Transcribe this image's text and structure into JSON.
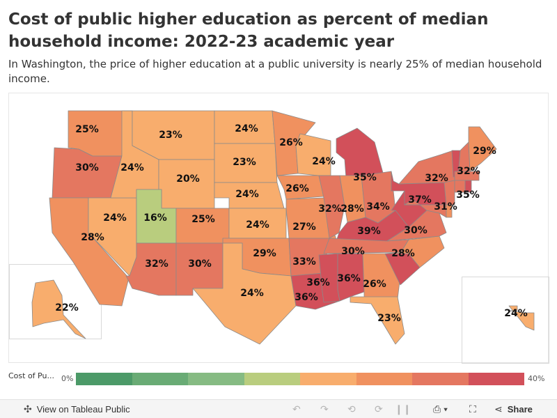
{
  "title": "Cost of public higher education as percent of median household income: 2022-23 academic year",
  "subtitle": "In Washington, the price of higher education at a public university is nearly 25% of median household income.",
  "colors": {
    "scale": [
      "#4c9a68",
      "#69ab75",
      "#86bb83",
      "#b9cd7e",
      "#f8ad6d",
      "#f0915f",
      "#e47760",
      "#d2505a"
    ],
    "border": "#8a8a8a"
  },
  "chart_data": {
    "type": "choropleth",
    "measure": "Cost of Pu...",
    "range": [
      0,
      40
    ],
    "states": [
      {
        "code": "WA",
        "value": 25,
        "label": "25%"
      },
      {
        "code": "OR",
        "value": 30,
        "label": "30%"
      },
      {
        "code": "CA",
        "value": 28,
        "label": "28%"
      },
      {
        "code": "NV",
        "value": 24,
        "label": "24%"
      },
      {
        "code": "ID",
        "value": 24,
        "label": "24%"
      },
      {
        "code": "MT",
        "value": 23,
        "label": "23%"
      },
      {
        "code": "WY",
        "value": 20,
        "label": "20%"
      },
      {
        "code": "UT",
        "value": 16,
        "label": "16%"
      },
      {
        "code": "CO",
        "value": 25,
        "label": "25%"
      },
      {
        "code": "AZ",
        "value": 32,
        "label": "32%"
      },
      {
        "code": "NM",
        "value": 30,
        "label": "30%"
      },
      {
        "code": "ND",
        "value": 24,
        "label": "24%"
      },
      {
        "code": "SD",
        "value": 23,
        "label": "23%"
      },
      {
        "code": "NE",
        "value": 24,
        "label": "24%"
      },
      {
        "code": "KS",
        "value": 24,
        "label": "24%"
      },
      {
        "code": "OK",
        "value": 29,
        "label": "29%"
      },
      {
        "code": "TX",
        "value": 24,
        "label": "24%"
      },
      {
        "code": "MN",
        "value": 26,
        "label": "26%"
      },
      {
        "code": "IA",
        "value": 26,
        "label": "26%"
      },
      {
        "code": "MO",
        "value": 27,
        "label": "27%"
      },
      {
        "code": "AR",
        "value": 33,
        "label": "33%"
      },
      {
        "code": "LA",
        "value": 36,
        "label": "36%"
      },
      {
        "code": "WI",
        "value": 24,
        "label": "24%"
      },
      {
        "code": "IL",
        "value": 32,
        "label": "32%"
      },
      {
        "code": "MI",
        "value": 35,
        "label": "35%"
      },
      {
        "code": "IN",
        "value": 28,
        "label": "28%"
      },
      {
        "code": "OH",
        "value": 34,
        "label": "34%"
      },
      {
        "code": "KY",
        "value": 39,
        "label": "39%"
      },
      {
        "code": "TN",
        "value": 30,
        "label": "30%"
      },
      {
        "code": "MS",
        "value": 36,
        "label": "36%"
      },
      {
        "code": "AL",
        "value": 36,
        "label": "36%"
      },
      {
        "code": "GA",
        "value": 26,
        "label": "26%"
      },
      {
        "code": "FL",
        "value": 23,
        "label": "23%"
      },
      {
        "code": "SC",
        "value": 36,
        "label": ""
      },
      {
        "code": "NC",
        "value": 28,
        "label": "28%"
      },
      {
        "code": "VA",
        "value": 30,
        "label": "30%"
      },
      {
        "code": "WV",
        "value": 38,
        "label": ""
      },
      {
        "code": "PA",
        "value": 37,
        "label": "37%"
      },
      {
        "code": "NY",
        "value": 32,
        "label": "32%"
      },
      {
        "code": "NJ",
        "value": 31,
        "label": "31%"
      },
      {
        "code": "MD",
        "value": 30,
        "label": ""
      },
      {
        "code": "DE",
        "value": 29,
        "label": ""
      },
      {
        "code": "VT",
        "value": 36,
        "label": ""
      },
      {
        "code": "NH",
        "value": 32,
        "label": "32%"
      },
      {
        "code": "ME",
        "value": 29,
        "label": "29%"
      },
      {
        "code": "MA",
        "value": 32,
        "label": ""
      },
      {
        "code": "CT",
        "value": 33,
        "label": ""
      },
      {
        "code": "RI",
        "value": 35,
        "label": "35%"
      },
      {
        "code": "AK",
        "value": 22,
        "label": "22%"
      },
      {
        "code": "HI",
        "value": 24,
        "label": "24%"
      }
    ]
  },
  "legend": {
    "title": "Cost of Pu...",
    "min_label": "0%",
    "max_label": "40%"
  },
  "toolbar": {
    "view_label": "View on Tableau Public",
    "share_label": "Share",
    "icons": [
      "tableau-logo-icon",
      "undo-icon",
      "redo-icon",
      "revert-icon",
      "pause-icon",
      "download-icon",
      "fullscreen-icon",
      "share-icon"
    ]
  }
}
